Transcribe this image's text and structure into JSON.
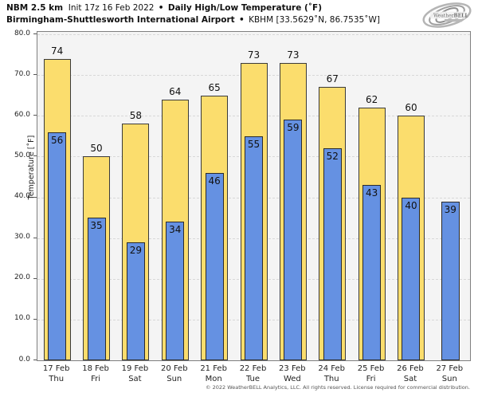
{
  "header": {
    "model": "NBM 2.5 km",
    "init": "Init 17z 16 Feb 2022",
    "separator": "•",
    "product": "Daily High/Low Temperature (˚F)",
    "station": "Birmingham-Shuttlesworth International Airport",
    "station_separator": "•",
    "station_meta": "KBHM [33.5629˚N, 86.7535˚W]"
  },
  "logo": {
    "brand_part1": "Weather",
    "brand_part2": "BELL",
    "tagline": "Analytics"
  },
  "footer": {
    "copyright": "© 2022 WeatherBELL Analytics, LLC. All rights reserved. License required for commercial distribution."
  },
  "colors": {
    "high_bar": "#fbdd6d",
    "low_bar": "#6591e2",
    "bar_border": "#2f2f2f",
    "plot_background": "#f4f4f4",
    "gridline": "#d8d8d8",
    "logo_gray": "#9a9a9a"
  },
  "chart_data": {
    "type": "bar",
    "title": "NBM 2.5 km Init 17z 16 Feb 2022 • Daily High/Low Temperature (˚F)",
    "subtitle": "Birmingham-Shuttlesworth International Airport • KBHM [33.5629˚N, 86.7535˚W]",
    "xlabel": "",
    "ylabel": "Temperature [˚F]",
    "ylim": [
      0,
      80
    ],
    "yticks": [
      0,
      10,
      20,
      30,
      40,
      50,
      60,
      70,
      80
    ],
    "ytick_labels": [
      "0.0",
      "10.0",
      "20.0",
      "30.0",
      "40.0",
      "50.0",
      "60.0",
      "70.0",
      "80.0"
    ],
    "grid": "horizontal-dashed",
    "legend_position": "none",
    "categories": [
      {
        "date": "17 Feb",
        "day": "Thu"
      },
      {
        "date": "18 Feb",
        "day": "Fri"
      },
      {
        "date": "19 Feb",
        "day": "Sat"
      },
      {
        "date": "20 Feb",
        "day": "Sun"
      },
      {
        "date": "21 Feb",
        "day": "Mon"
      },
      {
        "date": "22 Feb",
        "day": "Tue"
      },
      {
        "date": "23 Feb",
        "day": "Wed"
      },
      {
        "date": "24 Feb",
        "day": "Thu"
      },
      {
        "date": "25 Feb",
        "day": "Fri"
      },
      {
        "date": "26 Feb",
        "day": "Sat"
      },
      {
        "date": "27 Feb",
        "day": "Sun"
      }
    ],
    "series": [
      {
        "name": "Daily High",
        "color": "#fbdd6d",
        "values": [
          74,
          50,
          58,
          64,
          65,
          73,
          73,
          67,
          62,
          60,
          null
        ]
      },
      {
        "name": "Daily Low",
        "color": "#6591e2",
        "values": [
          56,
          35,
          29,
          34,
          46,
          55,
          59,
          52,
          43,
          40,
          39
        ]
      }
    ]
  }
}
